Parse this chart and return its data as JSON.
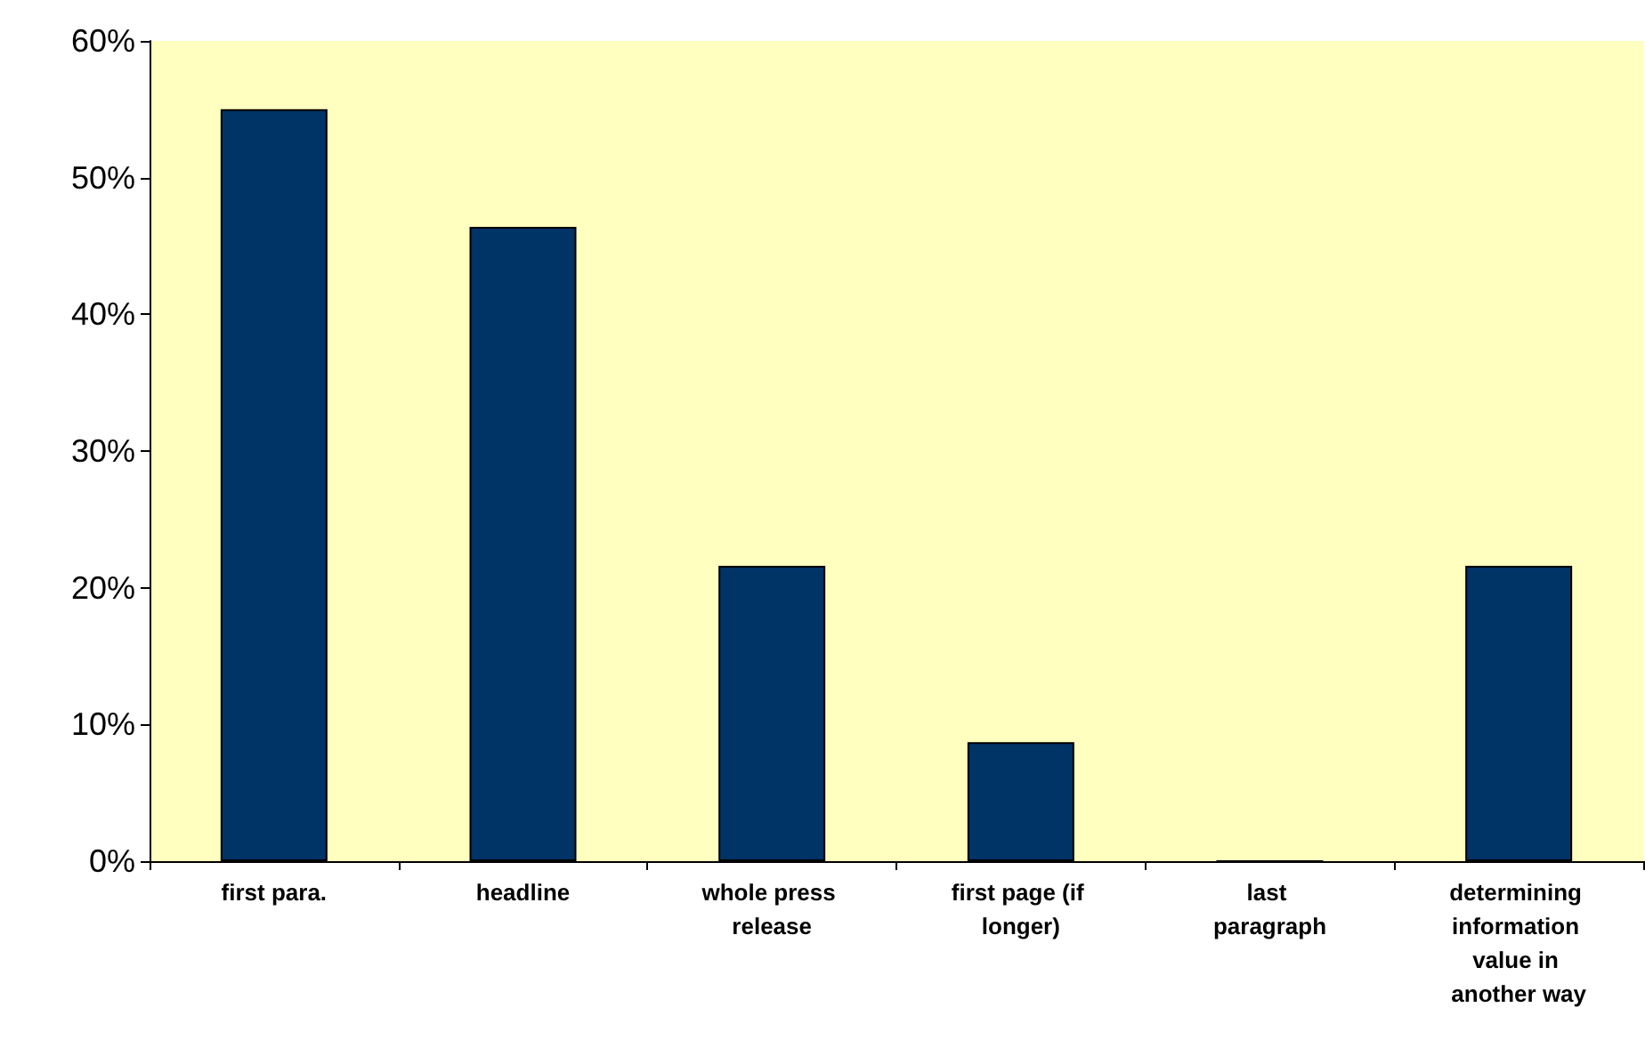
{
  "chart_data": {
    "type": "bar",
    "categories": [
      "first para.",
      "headline",
      "whole press release",
      "first page (if longer)",
      "last paragraph",
      "determining information value in another way"
    ],
    "values": [
      55,
      46.4,
      21.6,
      8.7,
      0,
      21.6
    ],
    "color": "#003366",
    "ylim": [
      0,
      60
    ],
    "yticks": [
      {
        "value": 0,
        "label": "0%"
      },
      {
        "value": 10,
        "label": "10%"
      },
      {
        "value": 20,
        "label": "20%"
      },
      {
        "value": 30,
        "label": "30%"
      },
      {
        "value": 40,
        "label": "40%"
      },
      {
        "value": 50,
        "label": "50%"
      },
      {
        "value": 60,
        "label": "60%"
      }
    ],
    "grid": false
  }
}
